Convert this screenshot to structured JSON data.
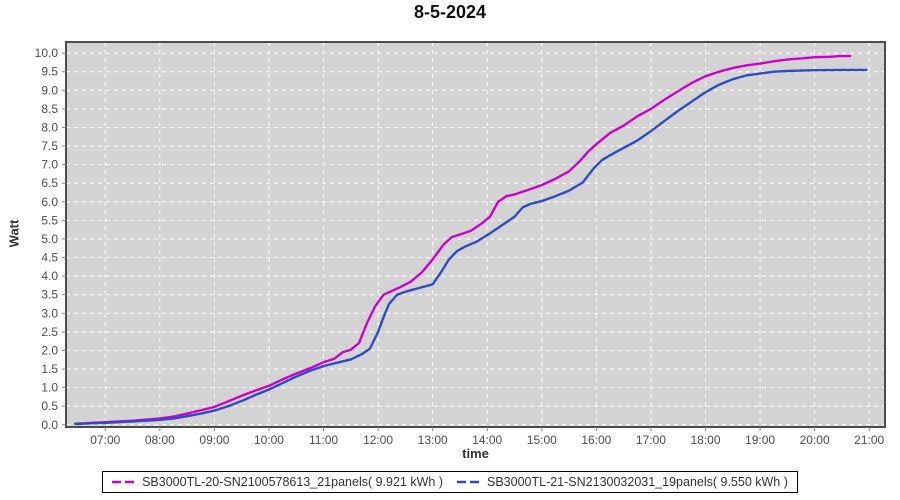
{
  "header": {
    "title": "8-5-2024"
  },
  "axes": {
    "y_label": "Watt",
    "x_label": "time"
  },
  "legend": {
    "entries": [
      {
        "label": "SB3000TL-20-SN2100578613_21panels( 9.921 kWh )",
        "color": "#cc00cc"
      },
      {
        "label": "SB3000TL-21-SN2130032031_19panels( 9.550 kWh )",
        "color": "#2b4bc8"
      }
    ]
  },
  "chart_data": {
    "type": "line",
    "title": "8-5-2024",
    "xlabel": "time",
    "ylabel": "Watt",
    "grid": true,
    "legend_position": "bottom",
    "plot_bg": "#d3d3d3",
    "grid_color": "#ffffff",
    "border_color": "#4c4c4c",
    "tick_label_color": "#4d4d4d",
    "xlim": [
      6.28,
      21.29
    ],
    "ylim": [
      -0.06,
      10.3
    ],
    "x_tick_hours": [
      7,
      8,
      9,
      10,
      11,
      12,
      13,
      14,
      15,
      16,
      17,
      18,
      19,
      20,
      21
    ],
    "x_tick_labels": [
      "07:00",
      "08:00",
      "09:00",
      "10:00",
      "11:00",
      "12:00",
      "13:00",
      "14:00",
      "15:00",
      "16:00",
      "17:00",
      "18:00",
      "19:00",
      "20:00",
      "21:00"
    ],
    "y_ticks": [
      0,
      0.5,
      1,
      1.5,
      2,
      2.5,
      3,
      3.5,
      4,
      4.5,
      5,
      5.5,
      6,
      6.5,
      7,
      7.5,
      8,
      8.5,
      9,
      9.5,
      10
    ],
    "series": [
      {
        "name": "SB3000TL-20-SN2100578613_21panels( 9.921 kWh )",
        "total": "9.921 kWh",
        "color": "#cc00cc",
        "x": [
          6.45,
          6.6,
          6.75,
          7.0,
          7.25,
          7.5,
          7.75,
          8.0,
          8.25,
          8.5,
          8.75,
          9.0,
          9.25,
          9.5,
          9.75,
          10.0,
          10.25,
          10.5,
          10.75,
          11.0,
          11.2,
          11.35,
          11.5,
          11.65,
          11.8,
          11.95,
          12.1,
          12.25,
          12.4,
          12.6,
          12.8,
          13.0,
          13.2,
          13.35,
          13.5,
          13.7,
          13.9,
          14.05,
          14.2,
          14.35,
          14.5,
          14.75,
          15.0,
          15.25,
          15.5,
          15.7,
          15.85,
          16.0,
          16.25,
          16.5,
          16.75,
          17.0,
          17.25,
          17.5,
          17.75,
          18.0,
          18.25,
          18.5,
          18.75,
          19.0,
          19.25,
          19.5,
          19.75,
          20.0,
          20.25,
          20.45,
          20.65
        ],
        "y": [
          0.03,
          0.04,
          0.05,
          0.07,
          0.09,
          0.11,
          0.14,
          0.17,
          0.22,
          0.3,
          0.39,
          0.48,
          0.63,
          0.78,
          0.92,
          1.05,
          1.22,
          1.38,
          1.52,
          1.68,
          1.78,
          1.95,
          2.02,
          2.2,
          2.75,
          3.2,
          3.5,
          3.6,
          3.7,
          3.85,
          4.1,
          4.45,
          4.85,
          5.05,
          5.12,
          5.22,
          5.42,
          5.6,
          6.0,
          6.15,
          6.2,
          6.32,
          6.45,
          6.62,
          6.82,
          7.1,
          7.35,
          7.55,
          7.85,
          8.05,
          8.3,
          8.5,
          8.75,
          8.98,
          9.2,
          9.38,
          9.5,
          9.6,
          9.67,
          9.72,
          9.78,
          9.83,
          9.86,
          9.89,
          9.9,
          9.92,
          9.921
        ]
      },
      {
        "name": "SB3000TL-21-SN2130032031_19panels( 9.550 kWh )",
        "total": "9.550 kWh",
        "color": "#2b4bc8",
        "x": [
          6.45,
          6.6,
          6.75,
          7.0,
          7.25,
          7.5,
          7.75,
          8.0,
          8.25,
          8.5,
          8.75,
          9.0,
          9.25,
          9.5,
          9.75,
          10.0,
          10.25,
          10.5,
          10.75,
          11.0,
          11.25,
          11.5,
          11.7,
          11.85,
          12.0,
          12.1,
          12.2,
          12.35,
          12.5,
          12.75,
          13.0,
          13.15,
          13.3,
          13.45,
          13.6,
          13.8,
          14.0,
          14.25,
          14.5,
          14.65,
          14.8,
          15.0,
          15.25,
          15.5,
          15.75,
          15.95,
          16.1,
          16.25,
          16.5,
          16.75,
          17.0,
          17.25,
          17.5,
          17.75,
          18.0,
          18.25,
          18.5,
          18.75,
          19.0,
          19.25,
          19.5,
          19.75,
          20.0,
          20.25,
          20.5,
          20.75,
          20.95
        ],
        "y": [
          0.02,
          0.03,
          0.04,
          0.05,
          0.07,
          0.09,
          0.11,
          0.13,
          0.17,
          0.23,
          0.3,
          0.38,
          0.5,
          0.64,
          0.8,
          0.95,
          1.12,
          1.3,
          1.45,
          1.58,
          1.67,
          1.76,
          1.9,
          2.05,
          2.5,
          2.9,
          3.25,
          3.5,
          3.58,
          3.68,
          3.78,
          4.1,
          4.45,
          4.68,
          4.8,
          4.92,
          5.1,
          5.35,
          5.6,
          5.85,
          5.95,
          6.02,
          6.15,
          6.3,
          6.52,
          6.9,
          7.12,
          7.25,
          7.45,
          7.65,
          7.9,
          8.18,
          8.45,
          8.7,
          8.95,
          9.15,
          9.3,
          9.4,
          9.45,
          9.5,
          9.52,
          9.53,
          9.54,
          9.545,
          9.55,
          9.55,
          9.55
        ]
      }
    ]
  }
}
